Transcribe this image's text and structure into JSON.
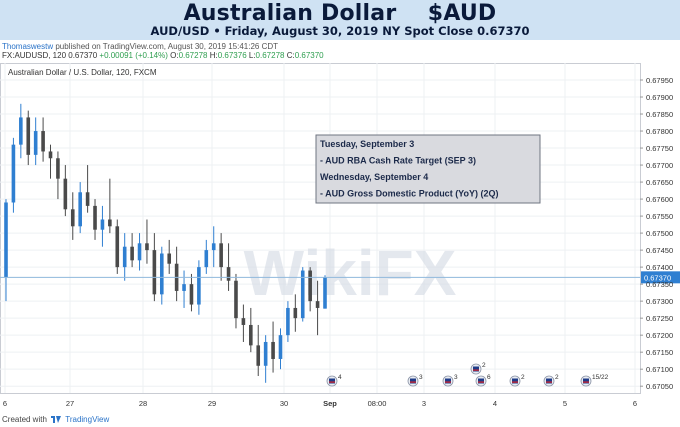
{
  "header": {
    "title": "Australian Dollar    $AUD",
    "subtitle": "AUD/USD • Friday, August 30, 2019 NY Spot Close 0.67370"
  },
  "publish": {
    "user": "Thomaswestw",
    "text": "published on TradingView.com, August 30, 2019 15:41:26 CDT"
  },
  "ohlc_line": {
    "prefix": "FX:AUDUSD, 120 0.67370 ",
    "change": "+0.00091 (+0.14%)",
    "o_label": " O:",
    "o": "0.67278",
    "h_label": " H:",
    "h": "0.67376",
    "l_label": " L:",
    "l": "0.67278",
    "c_label": " C:",
    "c": "0.67370"
  },
  "footer": {
    "created_with": "Created with",
    "brand": "TradingView"
  },
  "watermark": "WikiFX",
  "colors": {
    "bull": "#2f7fd1",
    "bear": "#4a4a4a",
    "price_line": "#8fb8dc",
    "banner": "#cfe2f3",
    "event_box": "#d9dadf"
  },
  "chart_data": {
    "type": "candlestick",
    "title": "Australian Dollar / U.S. Dollar, 120, FXCM",
    "ylim": [
      0.6703,
      0.68
    ],
    "y_ticks": [
      "0.67950",
      "0.67900",
      "0.67850",
      "0.67800",
      "0.67750",
      "0.67700",
      "0.67650",
      "0.67600",
      "0.67550",
      "0.67500",
      "0.67450",
      "0.67400",
      "0.67350",
      "0.67300",
      "0.67250",
      "0.67200",
      "0.67150",
      "0.67100",
      "0.67050"
    ],
    "x_ticks": [
      "6",
      "27",
      "28",
      "29",
      "30",
      "Sep",
      "08:00",
      "3",
      "4",
      "5",
      "6"
    ],
    "last_price": 0.6737,
    "grid": true,
    "events_box": [
      "Tuesday, September 3",
      "- AUD RBA Cash Rate Target (SEP 3)",
      "Wednesday, September 4",
      "- AUD Gross Domestic Product (YoY) (2Q)"
    ],
    "event_markers": [
      {
        "label": "4",
        "time": "Aug 31"
      },
      {
        "label": "3",
        "time": "Sep 2"
      },
      {
        "label": "3",
        "time": "Sep 3"
      },
      {
        "label": "2",
        "time": "Sep 3"
      },
      {
        "label": "6",
        "time": "Sep 3"
      },
      {
        "label": "2",
        "time": "Sep 4"
      },
      {
        "label": "2",
        "time": "Sep 5"
      },
      {
        "label": "15/22",
        "time": "Sep 6"
      }
    ],
    "candles": [
      {
        "o": 0.6737,
        "h": 0.676,
        "l": 0.673,
        "c": 0.6759
      },
      {
        "o": 0.6759,
        "h": 0.6778,
        "l": 0.6756,
        "c": 0.6776
      },
      {
        "o": 0.6776,
        "h": 0.6788,
        "l": 0.6772,
        "c": 0.6784
      },
      {
        "o": 0.6784,
        "h": 0.6786,
        "l": 0.677,
        "c": 0.6773
      },
      {
        "o": 0.6773,
        "h": 0.6784,
        "l": 0.677,
        "c": 0.678
      },
      {
        "o": 0.678,
        "h": 0.6784,
        "l": 0.6771,
        "c": 0.6774
      },
      {
        "o": 0.6774,
        "h": 0.6776,
        "l": 0.6766,
        "c": 0.6772
      },
      {
        "o": 0.6772,
        "h": 0.6774,
        "l": 0.676,
        "c": 0.6766
      },
      {
        "o": 0.6766,
        "h": 0.677,
        "l": 0.6755,
        "c": 0.6757
      },
      {
        "o": 0.6757,
        "h": 0.6762,
        "l": 0.6748,
        "c": 0.6752
      },
      {
        "o": 0.6752,
        "h": 0.6765,
        "l": 0.675,
        "c": 0.6762
      },
      {
        "o": 0.6762,
        "h": 0.677,
        "l": 0.6756,
        "c": 0.6758
      },
      {
        "o": 0.6758,
        "h": 0.676,
        "l": 0.6748,
        "c": 0.6751
      },
      {
        "o": 0.6751,
        "h": 0.6758,
        "l": 0.6746,
        "c": 0.6754
      },
      {
        "o": 0.6754,
        "h": 0.6766,
        "l": 0.675,
        "c": 0.6752
      },
      {
        "o": 0.6752,
        "h": 0.6754,
        "l": 0.6738,
        "c": 0.674
      },
      {
        "o": 0.674,
        "h": 0.675,
        "l": 0.6736,
        "c": 0.6746
      },
      {
        "o": 0.6746,
        "h": 0.675,
        "l": 0.674,
        "c": 0.6742
      },
      {
        "o": 0.6742,
        "h": 0.675,
        "l": 0.6739,
        "c": 0.6747
      },
      {
        "o": 0.6747,
        "h": 0.6754,
        "l": 0.6741,
        "c": 0.6745
      },
      {
        "o": 0.6745,
        "h": 0.675,
        "l": 0.673,
        "c": 0.6732
      },
      {
        "o": 0.6732,
        "h": 0.6746,
        "l": 0.6729,
        "c": 0.6744
      },
      {
        "o": 0.6744,
        "h": 0.6748,
        "l": 0.6738,
        "c": 0.6741
      },
      {
        "o": 0.6741,
        "h": 0.6746,
        "l": 0.673,
        "c": 0.6733
      },
      {
        "o": 0.6733,
        "h": 0.6739,
        "l": 0.6728,
        "c": 0.6735
      },
      {
        "o": 0.6735,
        "h": 0.6738,
        "l": 0.6727,
        "c": 0.6729
      },
      {
        "o": 0.6729,
        "h": 0.6742,
        "l": 0.6726,
        "c": 0.674
      },
      {
        "o": 0.674,
        "h": 0.6748,
        "l": 0.6738,
        "c": 0.6745
      },
      {
        "o": 0.6745,
        "h": 0.6752,
        "l": 0.674,
        "c": 0.6747
      },
      {
        "o": 0.6747,
        "h": 0.675,
        "l": 0.6736,
        "c": 0.674
      },
      {
        "o": 0.674,
        "h": 0.6747,
        "l": 0.6733,
        "c": 0.6736
      },
      {
        "o": 0.6736,
        "h": 0.6738,
        "l": 0.6722,
        "c": 0.6725
      },
      {
        "o": 0.6725,
        "h": 0.6729,
        "l": 0.6718,
        "c": 0.6723
      },
      {
        "o": 0.6723,
        "h": 0.6728,
        "l": 0.6715,
        "c": 0.6717
      },
      {
        "o": 0.6717,
        "h": 0.6723,
        "l": 0.6708,
        "c": 0.6711
      },
      {
        "o": 0.6711,
        "h": 0.672,
        "l": 0.6706,
        "c": 0.6718
      },
      {
        "o": 0.6718,
        "h": 0.6724,
        "l": 0.6709,
        "c": 0.6713
      },
      {
        "o": 0.6713,
        "h": 0.6722,
        "l": 0.671,
        "c": 0.672
      },
      {
        "o": 0.672,
        "h": 0.673,
        "l": 0.6718,
        "c": 0.6728
      },
      {
        "o": 0.6728,
        "h": 0.6732,
        "l": 0.6721,
        "c": 0.6725
      },
      {
        "o": 0.6725,
        "h": 0.674,
        "l": 0.6724,
        "c": 0.6739
      },
      {
        "o": 0.6739,
        "h": 0.674,
        "l": 0.6727,
        "c": 0.673
      },
      {
        "o": 0.673,
        "h": 0.6736,
        "l": 0.672,
        "c": 0.6728
      },
      {
        "o": 0.67278,
        "h": 0.67376,
        "l": 0.67278,
        "c": 0.6737
      }
    ]
  }
}
